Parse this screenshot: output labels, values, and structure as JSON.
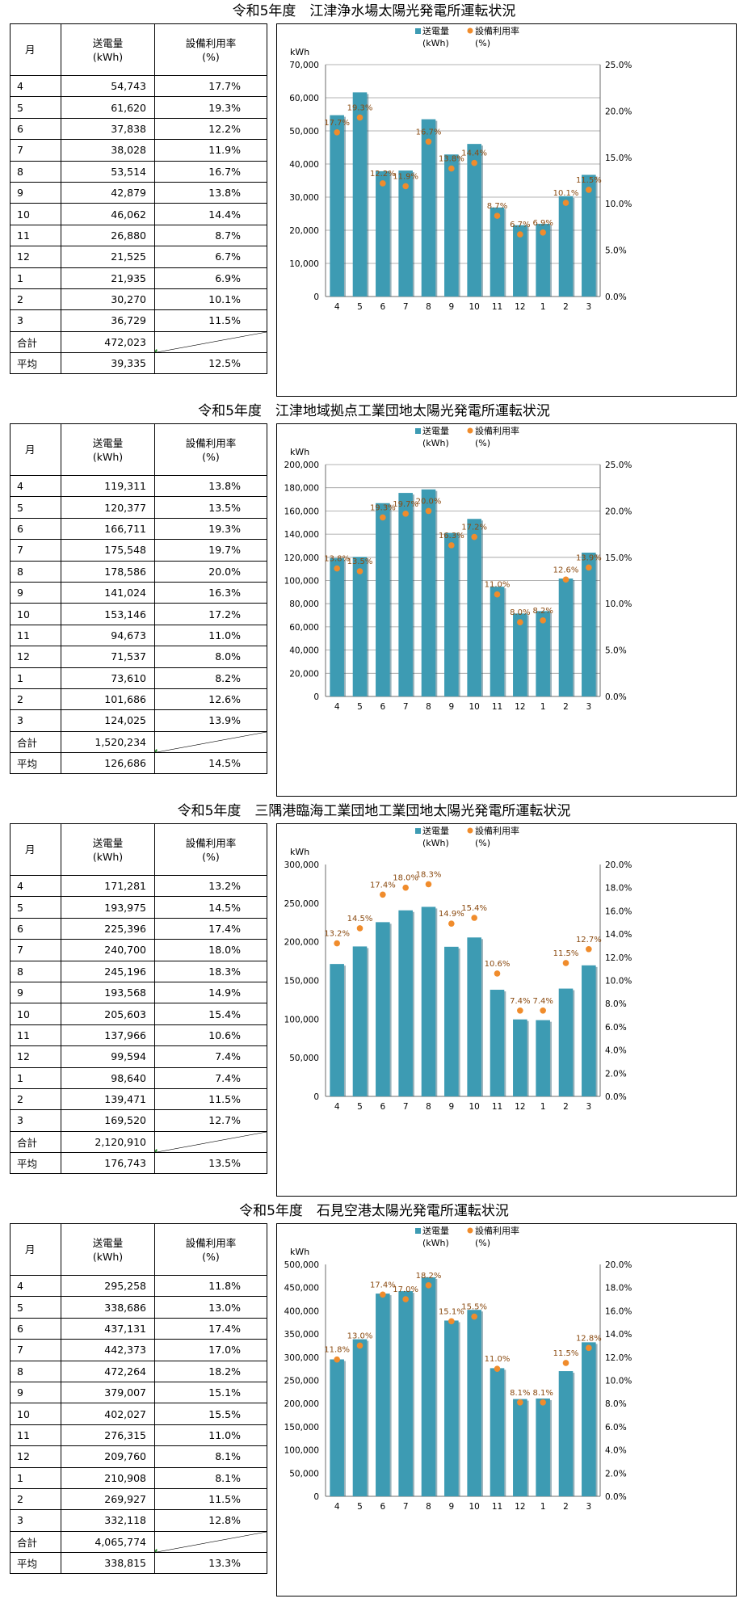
{
  "header_labels": {
    "month": "月",
    "energy_line1": "送電量",
    "energy_line2": "(kWh)",
    "rate_line1": "設備利用率",
    "rate_line2": "(%)",
    "total": "合計",
    "average": "平均",
    "y_unit": "kWh",
    "legend_energy": "送電量",
    "legend_energy_unit": "(kWh)",
    "legend_rate": "設備利用率",
    "legend_rate_unit": "(%)"
  },
  "colors": {
    "bar": "#3d9bb3",
    "marker": "#f08c2c",
    "label": "#8a4a10"
  },
  "sections": [
    {
      "title": "令和5年度　江津浄水場太陽光発電所運転状況",
      "rows": [
        {
          "month": "4",
          "energy": "54,743",
          "rate": "17.7%"
        },
        {
          "month": "5",
          "energy": "61,620",
          "rate": "19.3%"
        },
        {
          "month": "6",
          "energy": "37,838",
          "rate": "12.2%"
        },
        {
          "month": "7",
          "energy": "38,028",
          "rate": "11.9%"
        },
        {
          "month": "8",
          "energy": "53,514",
          "rate": "16.7%"
        },
        {
          "month": "9",
          "energy": "42,879",
          "rate": "13.8%"
        },
        {
          "month": "10",
          "energy": "46,062",
          "rate": "14.4%"
        },
        {
          "month": "11",
          "energy": "26,880",
          "rate": "8.7%"
        },
        {
          "month": "12",
          "energy": "21,525",
          "rate": "6.7%"
        },
        {
          "month": "1",
          "energy": "21,935",
          "rate": "6.9%"
        },
        {
          "month": "2",
          "energy": "30,270",
          "rate": "10.1%"
        },
        {
          "month": "3",
          "energy": "36,729",
          "rate": "11.5%"
        }
      ],
      "total_energy": "472,023",
      "avg_energy": "39,335",
      "avg_rate": "12.5%"
    },
    {
      "title": "令和5年度　江津地域拠点工業団地太陽光発電所運転状況",
      "rows": [
        {
          "month": "4",
          "energy": "119,311",
          "rate": "13.8%"
        },
        {
          "month": "5",
          "energy": "120,377",
          "rate": "13.5%"
        },
        {
          "month": "6",
          "energy": "166,711",
          "rate": "19.3%"
        },
        {
          "month": "7",
          "energy": "175,548",
          "rate": "19.7%"
        },
        {
          "month": "8",
          "energy": "178,586",
          "rate": "20.0%"
        },
        {
          "month": "9",
          "energy": "141,024",
          "rate": "16.3%"
        },
        {
          "month": "10",
          "energy": "153,146",
          "rate": "17.2%"
        },
        {
          "month": "11",
          "energy": "94,673",
          "rate": "11.0%"
        },
        {
          "month": "12",
          "energy": "71,537",
          "rate": "8.0%"
        },
        {
          "month": "1",
          "energy": "73,610",
          "rate": "8.2%"
        },
        {
          "month": "2",
          "energy": "101,686",
          "rate": "12.6%"
        },
        {
          "month": "3",
          "energy": "124,025",
          "rate": "13.9%"
        }
      ],
      "total_energy": "1,520,234",
      "avg_energy": "126,686",
      "avg_rate": "14.5%"
    },
    {
      "title": "令和5年度　三隅港臨海工業団地工業団地太陽光発電所運転状況",
      "rows": [
        {
          "month": "4",
          "energy": "171,281",
          "rate": "13.2%"
        },
        {
          "month": "5",
          "energy": "193,975",
          "rate": "14.5%"
        },
        {
          "month": "6",
          "energy": "225,396",
          "rate": "17.4%"
        },
        {
          "month": "7",
          "energy": "240,700",
          "rate": "18.0%"
        },
        {
          "month": "8",
          "energy": "245,196",
          "rate": "18.3%"
        },
        {
          "month": "9",
          "energy": "193,568",
          "rate": "14.9%"
        },
        {
          "month": "10",
          "energy": "205,603",
          "rate": "15.4%"
        },
        {
          "month": "11",
          "energy": "137,966",
          "rate": "10.6%"
        },
        {
          "month": "12",
          "energy": "99,594",
          "rate": "7.4%"
        },
        {
          "month": "1",
          "energy": "98,640",
          "rate": "7.4%"
        },
        {
          "month": "2",
          "energy": "139,471",
          "rate": "11.5%"
        },
        {
          "month": "3",
          "energy": "169,520",
          "rate": "12.7%"
        }
      ],
      "total_energy": "2,120,910",
      "avg_energy": "176,743",
      "avg_rate": "13.5%"
    },
    {
      "title": "令和5年度　石見空港太陽光発電所運転状況",
      "rows": [
        {
          "month": "4",
          "energy": "295,258",
          "rate": "11.8%"
        },
        {
          "month": "5",
          "energy": "338,686",
          "rate": "13.0%"
        },
        {
          "month": "6",
          "energy": "437,131",
          "rate": "17.4%"
        },
        {
          "month": "7",
          "energy": "442,373",
          "rate": "17.0%"
        },
        {
          "month": "8",
          "energy": "472,264",
          "rate": "18.2%"
        },
        {
          "month": "9",
          "energy": "379,007",
          "rate": "15.1%"
        },
        {
          "month": "10",
          "energy": "402,027",
          "rate": "15.5%"
        },
        {
          "month": "11",
          "energy": "276,315",
          "rate": "11.0%"
        },
        {
          "month": "12",
          "energy": "209,760",
          "rate": "8.1%"
        },
        {
          "month": "1",
          "energy": "210,908",
          "rate": "8.1%"
        },
        {
          "month": "2",
          "energy": "269,927",
          "rate": "11.5%"
        },
        {
          "month": "3",
          "energy": "332,118",
          "rate": "12.8%"
        }
      ],
      "total_energy": "4,065,774",
      "avg_energy": "338,815",
      "avg_rate": "13.3%"
    }
  ],
  "chart_data": [
    {
      "type": "bar",
      "title": "令和5年度　江津浄水場太陽光発電所運転状況",
      "categories": [
        "4",
        "5",
        "6",
        "7",
        "8",
        "9",
        "10",
        "11",
        "12",
        "1",
        "2",
        "3"
      ],
      "series": [
        {
          "name": "送電量 (kWh)",
          "type": "bar",
          "axis": "left",
          "values": [
            54743,
            61620,
            37838,
            38028,
            53514,
            42879,
            46062,
            26880,
            21525,
            21935,
            30270,
            36729
          ]
        },
        {
          "name": "設備利用率 (%)",
          "type": "scatter",
          "axis": "right",
          "values": [
            17.7,
            19.3,
            12.2,
            11.9,
            16.7,
            13.8,
            14.4,
            8.7,
            6.7,
            6.9,
            10.1,
            11.5
          ]
        }
      ],
      "ylabel": "kWh",
      "ylim": [
        0,
        70000
      ],
      "yticks": [
        0,
        10000,
        20000,
        30000,
        40000,
        50000,
        60000,
        70000
      ],
      "y2lim": [
        0,
        25
      ],
      "y2ticks": [
        0,
        5,
        10,
        15,
        20,
        25
      ],
      "grid": true,
      "legend": "top"
    },
    {
      "type": "bar",
      "title": "令和5年度　江津地域拠点工業団地太陽光発電所運転状況",
      "categories": [
        "4",
        "5",
        "6",
        "7",
        "8",
        "9",
        "10",
        "11",
        "12",
        "1",
        "2",
        "3"
      ],
      "series": [
        {
          "name": "送電量 (kWh)",
          "type": "bar",
          "axis": "left",
          "values": [
            119311,
            120377,
            166711,
            175548,
            178586,
            141024,
            153146,
            94673,
            71537,
            73610,
            101686,
            124025
          ]
        },
        {
          "name": "設備利用率 (%)",
          "type": "scatter",
          "axis": "right",
          "values": [
            13.8,
            13.5,
            19.3,
            19.7,
            20.0,
            16.3,
            17.2,
            11.0,
            8.0,
            8.2,
            12.6,
            13.9
          ]
        }
      ],
      "ylabel": "kWh",
      "ylim": [
        0,
        200000
      ],
      "yticks": [
        0,
        20000,
        40000,
        60000,
        80000,
        100000,
        120000,
        140000,
        160000,
        180000,
        200000
      ],
      "y2lim": [
        0,
        25
      ],
      "y2ticks": [
        0,
        5,
        10,
        15,
        20,
        25
      ],
      "grid": true,
      "legend": "top"
    },
    {
      "type": "bar",
      "title": "令和5年度　三隅港臨海工業団地工業団地太陽光発電所運転状況",
      "categories": [
        "4",
        "5",
        "6",
        "7",
        "8",
        "9",
        "10",
        "11",
        "12",
        "1",
        "2",
        "3"
      ],
      "series": [
        {
          "name": "送電量 (kWh)",
          "type": "bar",
          "axis": "left",
          "values": [
            171281,
            193975,
            225396,
            240700,
            245196,
            193568,
            205603,
            137966,
            99594,
            98640,
            139471,
            169520
          ]
        },
        {
          "name": "設備利用率 (%)",
          "type": "scatter",
          "axis": "right",
          "values": [
            13.2,
            14.5,
            17.4,
            18.0,
            18.3,
            14.9,
            15.4,
            10.6,
            7.4,
            7.4,
            11.5,
            12.7
          ]
        }
      ],
      "ylabel": "kWh",
      "ylim": [
        0,
        300000
      ],
      "yticks": [
        0,
        50000,
        100000,
        150000,
        200000,
        250000,
        300000
      ],
      "y2lim": [
        0,
        20
      ],
      "y2ticks": [
        0,
        2,
        4,
        6,
        8,
        10,
        12,
        14,
        16,
        18,
        20
      ],
      "grid": false,
      "legend": "top"
    },
    {
      "type": "bar",
      "title": "令和5年度　石見空港太陽光発電所運転状況",
      "categories": [
        "4",
        "5",
        "6",
        "7",
        "8",
        "9",
        "10",
        "11",
        "12",
        "1",
        "2",
        "3"
      ],
      "series": [
        {
          "name": "送電量 (kWh)",
          "type": "bar",
          "axis": "left",
          "values": [
            295258,
            338686,
            437131,
            442373,
            472264,
            379007,
            402027,
            276315,
            209760,
            210908,
            269927,
            332118
          ]
        },
        {
          "name": "設備利用率 (%)",
          "type": "scatter",
          "axis": "right",
          "values": [
            11.8,
            13.0,
            17.4,
            17.0,
            18.2,
            15.1,
            15.5,
            11.0,
            8.1,
            8.1,
            11.5,
            12.8
          ]
        }
      ],
      "ylabel": "kWh",
      "ylim": [
        0,
        500000
      ],
      "yticks": [
        0,
        50000,
        100000,
        150000,
        200000,
        250000,
        300000,
        350000,
        400000,
        450000,
        500000
      ],
      "y2lim": [
        0,
        20
      ],
      "y2ticks": [
        0,
        2,
        4,
        6,
        8,
        10,
        12,
        14,
        16,
        18,
        20
      ],
      "grid": false,
      "legend": "top"
    }
  ]
}
